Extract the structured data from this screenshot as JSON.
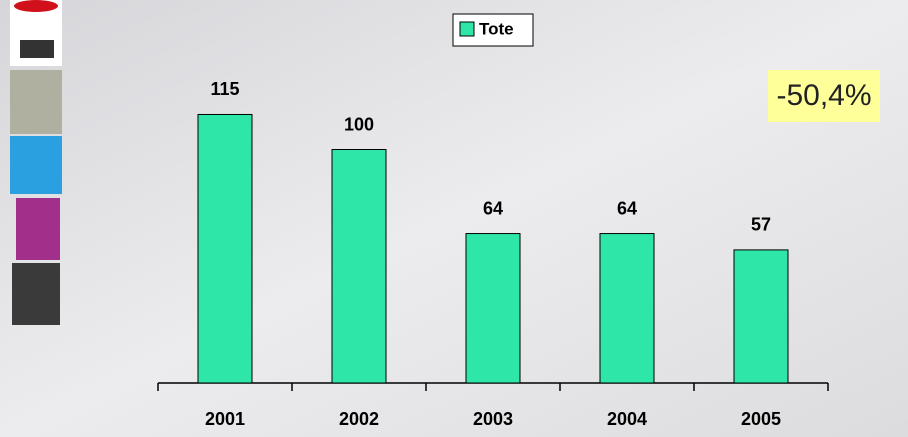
{
  "chart_data": {
    "type": "bar",
    "categories": [
      "2001",
      "2002",
      "2003",
      "2004",
      "2005"
    ],
    "series": [
      {
        "name": "Tote",
        "color": "#2ee6a8",
        "values": [
          115,
          100,
          64,
          64,
          57
        ]
      }
    ],
    "annotation": "-50,4%"
  }
}
